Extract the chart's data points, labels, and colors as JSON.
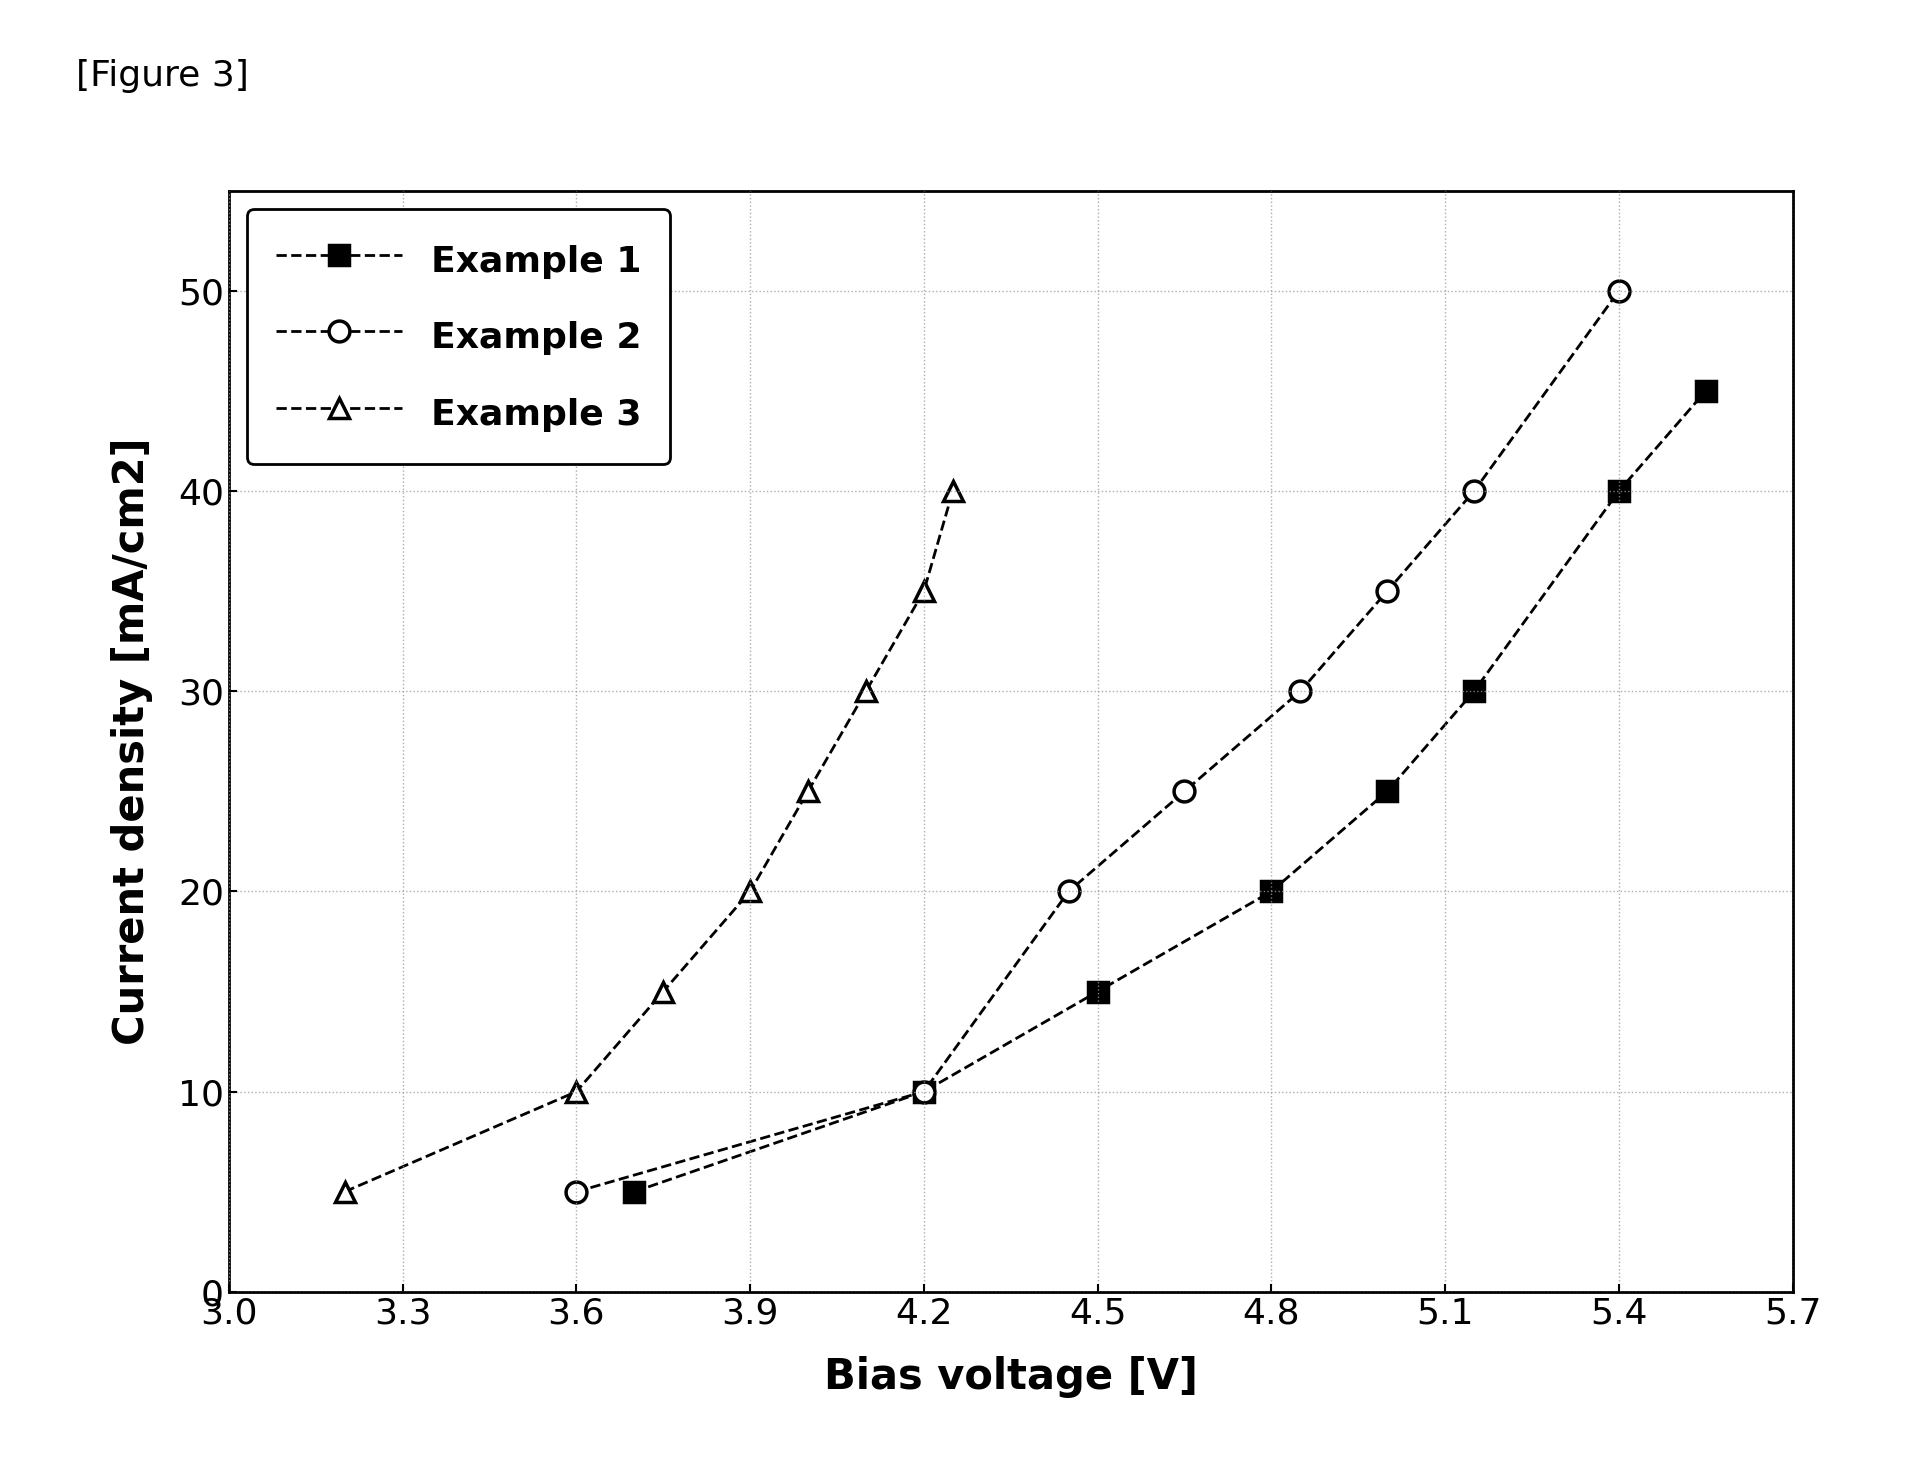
{
  "example1": {
    "x": [
      3.7,
      4.2,
      4.5,
      4.8,
      5.0,
      5.15,
      5.4,
      5.55
    ],
    "y": [
      5,
      10,
      15,
      20,
      25,
      30,
      40,
      45
    ],
    "label": "Example 1",
    "marker": "s",
    "markersize": 14,
    "markerfacecolor": "#000000",
    "markeredgecolor": "#000000",
    "color": "#000000",
    "linestyle": "--"
  },
  "example2": {
    "x": [
      3.6,
      4.2,
      4.45,
      4.65,
      4.85,
      5.0,
      5.15,
      5.4
    ],
    "y": [
      5,
      10,
      20,
      25,
      30,
      35,
      40,
      50
    ],
    "label": "Example 2",
    "marker": "o",
    "markersize": 15,
    "markerfacecolor": "#ffffff",
    "markeredgecolor": "#000000",
    "color": "#000000",
    "linestyle": "--"
  },
  "example3": {
    "x": [
      3.2,
      3.6,
      3.75,
      3.9,
      4.0,
      4.1,
      4.2,
      4.25
    ],
    "y": [
      5,
      10,
      15,
      20,
      25,
      30,
      35,
      40
    ],
    "label": "Example 3",
    "marker": "^",
    "markersize": 15,
    "markerfacecolor": "#ffffff",
    "markeredgecolor": "#000000",
    "color": "#000000",
    "linestyle": "--"
  },
  "xlabel": "Bias voltage [V]",
  "ylabel": "Current density [mA/cm2]",
  "xlim": [
    3.0,
    5.7
  ],
  "ylim": [
    0,
    55
  ],
  "xticks": [
    3.0,
    3.3,
    3.6,
    3.9,
    4.2,
    4.5,
    4.8,
    5.1,
    5.4,
    5.7
  ],
  "yticks": [
    0,
    10,
    20,
    30,
    40,
    50
  ],
  "figure_label": "[Figure 3]",
  "background_color": "#ffffff",
  "grid_color": "#999999"
}
